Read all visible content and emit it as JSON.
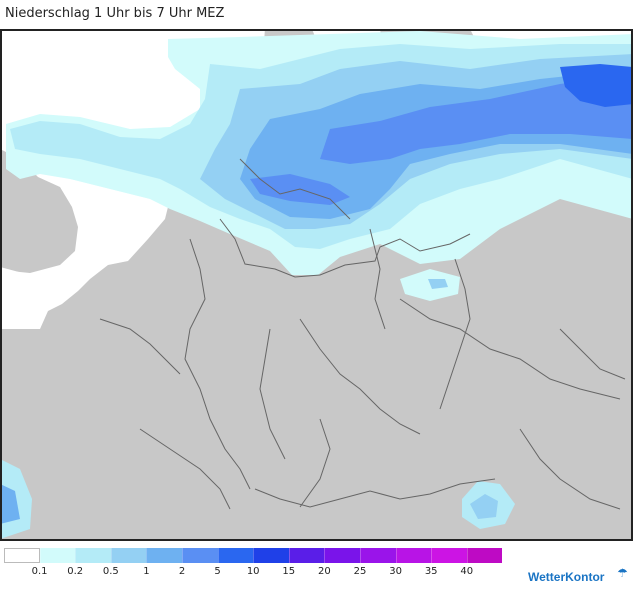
{
  "title": "Niederschlag 1 Uhr bis 7 Uhr MEZ",
  "legend": {
    "colors": [
      "#ffffff",
      "#d2fbfb",
      "#b4ebf7",
      "#94d0f3",
      "#6eb1f1",
      "#5a8ff3",
      "#2a67f0",
      "#1f40e8",
      "#5a1ee8",
      "#7a14ea",
      "#9a14ea",
      "#b814e6",
      "#cc14e4",
      "#be0ac4"
    ],
    "labels": [
      "0.1",
      "0.2",
      "0.5",
      "1",
      "2",
      "5",
      "10",
      "15",
      "20",
      "25",
      "30",
      "35",
      "40"
    ]
  },
  "map": {
    "land_color": "#c8c8c8",
    "sea_color": "#ffffff",
    "border_color": "#666666"
  },
  "brand": {
    "name": "WetterKontor",
    "icon": "weather-icon"
  }
}
